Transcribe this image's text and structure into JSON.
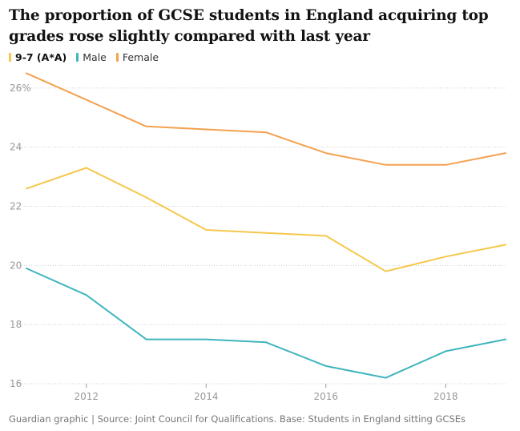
{
  "title": "The proportion of GCSE students in England acquiring top grades rose slightly compared with last year",
  "footer": "Guardian graphic | Source: Joint Council for Qualifications. Base: Students in England sitting GCSEs",
  "chart_data": {
    "type": "line",
    "x": [
      2011,
      2012,
      2013,
      2014,
      2015,
      2016,
      2017,
      2018,
      2019
    ],
    "xlim": [
      2011,
      2019
    ],
    "xticks": [
      2012,
      2014,
      2016,
      2018
    ],
    "xtick_labels": [
      "2012",
      "2014",
      "2016",
      "2018"
    ],
    "ylim": [
      16,
      26.7
    ],
    "yticks": [
      16,
      18,
      20,
      22,
      24,
      26
    ],
    "ytick_labels": [
      "16",
      "18",
      "20",
      "22",
      "24",
      "26%"
    ],
    "grid": "horizontal dotted",
    "legend_position": "top-left",
    "series": [
      {
        "name": "9-7 (A*A)",
        "color": "#f5c84c",
        "values": [
          22.6,
          23.3,
          22.3,
          21.2,
          21.1,
          21.0,
          19.8,
          20.3,
          20.7
        ]
      },
      {
        "name": "Male",
        "color": "#40b5bd",
        "values": [
          19.9,
          19.0,
          17.5,
          17.5,
          17.4,
          16.6,
          16.2,
          17.1,
          17.5
        ]
      },
      {
        "name": "Female",
        "color": "#f4a14f",
        "values": [
          26.5,
          25.6,
          24.7,
          24.6,
          24.5,
          23.8,
          23.4,
          23.4,
          23.8
        ]
      }
    ]
  }
}
